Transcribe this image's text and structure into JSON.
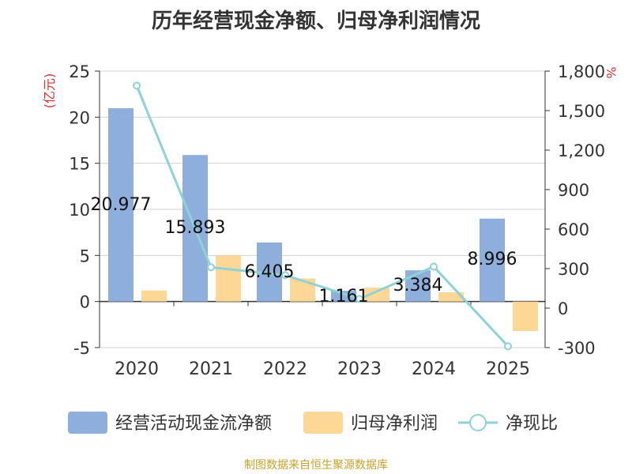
{
  "chart_data": {
    "type": "bar",
    "title": "历年经营现金净额、归母净利润情况",
    "categories": [
      "2020",
      "2021",
      "2022",
      "2023",
      "2024",
      "2025"
    ],
    "ylabel_left": "(亿元)",
    "ylabel_right": "%",
    "ylim_left": [
      -5,
      25
    ],
    "yticks_left": [
      25,
      20,
      15,
      10,
      5,
      0,
      -5
    ],
    "ylim_right": [
      -300,
      1800
    ],
    "yticks_right": [
      "1,800",
      "1,500",
      "1,200",
      "900",
      "600",
      "300",
      "0",
      "-300"
    ],
    "yticks_right_values": [
      1800,
      1500,
      1200,
      900,
      600,
      300,
      0,
      -300
    ],
    "series": [
      {
        "name": "经营活动现金流净额",
        "kind": "bar",
        "axis": "left",
        "color": "#8eaedb",
        "values": [
          20.977,
          15.893,
          6.405,
          1.161,
          3.384,
          8.996
        ],
        "labels": [
          "20.977",
          "15.893",
          "6.405",
          "1.161",
          "3.384",
          "8.996"
        ]
      },
      {
        "name": "归母净利润",
        "kind": "bar",
        "axis": "left",
        "color": "#fdd795",
        "values": [
          1.2,
          5.0,
          2.5,
          1.5,
          1.0,
          -3.2
        ]
      },
      {
        "name": "净现比",
        "kind": "line",
        "axis": "right",
        "color": "#8dd3d6",
        "values": [
          1690,
          310,
          250,
          70,
          315,
          -290
        ]
      }
    ],
    "legend_position": "bottom"
  },
  "source_note": "制图数据来自恒生聚源数据库"
}
